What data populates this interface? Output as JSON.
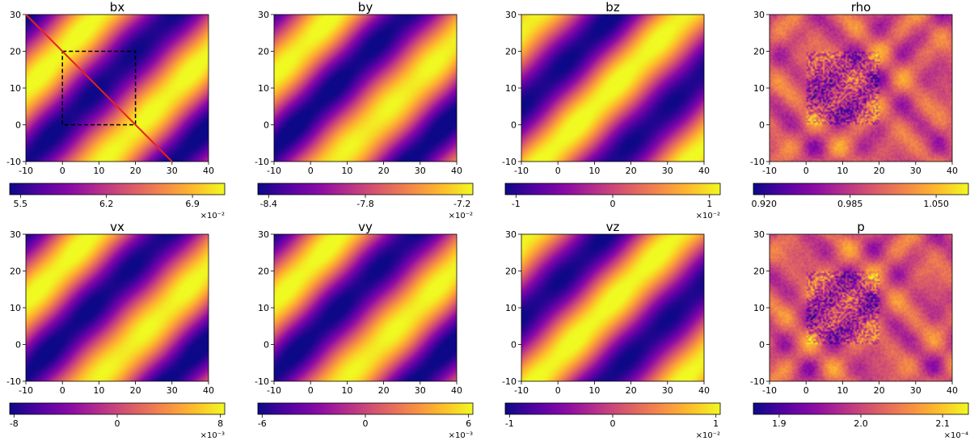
{
  "chart_data": [
    {
      "type": "heatmap",
      "title": "bx",
      "x_ticks": [
        -10,
        0,
        10,
        20,
        30,
        40
      ],
      "y_ticks": [
        -10,
        0,
        10,
        20,
        30
      ],
      "xlim": [
        -10,
        40
      ],
      "ylim": [
        -10,
        30
      ],
      "colormap": "plasma",
      "pattern": "diag",
      "phase": 0.0,
      "colorbar": {
        "ticks": [
          "5.5",
          "6.2",
          "6.9"
        ],
        "tick_positions": [
          0.05,
          0.45,
          0.85
        ],
        "multiplier": "×10⁻²",
        "range": [
          5.41,
          7.17
        ]
      },
      "overlays": {
        "dashed_box": {
          "x": [
            0,
            20
          ],
          "y": [
            0,
            20
          ],
          "color": "#000000"
        },
        "line": {
          "from": [
            -10,
            30
          ],
          "to": [
            30,
            -10
          ],
          "color": "#e8211a"
        }
      }
    },
    {
      "type": "heatmap",
      "title": "by",
      "x_ticks": [
        -10,
        0,
        10,
        20,
        30,
        40
      ],
      "y_ticks": [
        -10,
        0,
        10,
        20,
        30
      ],
      "xlim": [
        -10,
        40
      ],
      "ylim": [
        -10,
        30
      ],
      "colormap": "plasma",
      "pattern": "diag",
      "phase": 0.6,
      "colorbar": {
        "ticks": [
          "-8.4",
          "-7.8",
          "-7.2"
        ],
        "tick_positions": [
          0.05,
          0.5,
          0.95
        ],
        "multiplier": "×10⁻²",
        "range": [
          -8.47,
          -7.13
        ]
      }
    },
    {
      "type": "heatmap",
      "title": "bz",
      "x_ticks": [
        -10,
        0,
        10,
        20,
        30,
        40
      ],
      "y_ticks": [
        -10,
        0,
        10,
        20,
        30
      ],
      "xlim": [
        -10,
        40
      ],
      "ylim": [
        -10,
        30
      ],
      "colormap": "plasma",
      "pattern": "diag",
      "phase": 2.4,
      "colorbar": {
        "ticks": [
          "-1",
          "0",
          "1"
        ],
        "tick_positions": [
          0.05,
          0.5,
          0.95
        ],
        "multiplier": "×10⁻²",
        "range": [
          -1.1,
          1.1
        ]
      }
    },
    {
      "type": "heatmap",
      "title": "rho",
      "x_ticks": [
        -10,
        0,
        10,
        20,
        30,
        40
      ],
      "y_ticks": [
        -10,
        0,
        10,
        20,
        30
      ],
      "xlim": [
        -10,
        40
      ],
      "ylim": [
        -10,
        30
      ],
      "colormap": "plasma",
      "pattern": "noise",
      "phase": 0.0,
      "colorbar": {
        "ticks": [
          "0.920",
          "0.985",
          "1.050"
        ],
        "tick_positions": [
          0.05,
          0.45,
          0.85
        ],
        "multiplier": "",
        "range": [
          0.912,
          1.073
        ]
      }
    },
    {
      "type": "heatmap",
      "title": "vx",
      "x_ticks": [
        -10,
        0,
        10,
        20,
        30,
        40
      ],
      "y_ticks": [
        -10,
        0,
        10,
        20,
        30
      ],
      "xlim": [
        -10,
        40
      ],
      "ylim": [
        -10,
        30
      ],
      "colormap": "plasma",
      "pattern": "diag",
      "phase": 0.3,
      "colorbar": {
        "ticks": [
          "-8",
          "0",
          "8"
        ],
        "tick_positions": [
          0.02,
          0.5,
          0.98
        ],
        "multiplier": "×10⁻³",
        "range": [
          -8.3,
          8.3
        ]
      }
    },
    {
      "type": "heatmap",
      "title": "vy",
      "x_ticks": [
        -10,
        0,
        10,
        20,
        30,
        40
      ],
      "y_ticks": [
        -10,
        0,
        10,
        20,
        30
      ],
      "xlim": [
        -10,
        40
      ],
      "ylim": [
        -10,
        30
      ],
      "colormap": "plasma",
      "pattern": "diag",
      "phase": 0.3,
      "colorbar": {
        "ticks": [
          "-6",
          "0",
          "6"
        ],
        "tick_positions": [
          0.02,
          0.5,
          0.98
        ],
        "multiplier": "×10⁻³",
        "range": [
          -6.3,
          6.3
        ]
      }
    },
    {
      "type": "heatmap",
      "title": "vz",
      "x_ticks": [
        -10,
        0,
        10,
        20,
        30,
        40
      ],
      "y_ticks": [
        -10,
        0,
        10,
        20,
        30
      ],
      "xlim": [
        -10,
        40
      ],
      "ylim": [
        -10,
        30
      ],
      "colormap": "plasma",
      "pattern": "diag",
      "phase": 2.7,
      "colorbar": {
        "ticks": [
          "-1",
          "0",
          "1"
        ],
        "tick_positions": [
          0.02,
          0.5,
          0.98
        ],
        "multiplier": "×10⁻²",
        "range": [
          -1.05,
          1.05
        ]
      }
    },
    {
      "type": "heatmap",
      "title": "p",
      "x_ticks": [
        -10,
        0,
        10,
        20,
        30,
        40
      ],
      "y_ticks": [
        -10,
        0,
        10,
        20,
        30
      ],
      "xlim": [
        -10,
        40
      ],
      "ylim": [
        -10,
        30
      ],
      "colormap": "plasma",
      "pattern": "noise",
      "phase": 1.0,
      "colorbar": {
        "ticks": [
          "1.9",
          "2.0",
          "2.1"
        ],
        "tick_positions": [
          0.12,
          0.5,
          0.88
        ],
        "multiplier": "×10⁻⁴",
        "range": [
          1.87,
          2.13
        ]
      }
    }
  ]
}
